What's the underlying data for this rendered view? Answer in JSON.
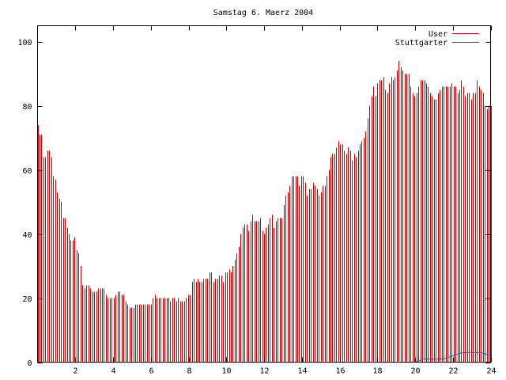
{
  "chart_data": {
    "type": "bar",
    "title": "Samstag 6. Maerz 2004",
    "xlim": [
      0,
      24
    ],
    "ylim": [
      0,
      105
    ],
    "x_ticks": [
      "2",
      "4",
      "6",
      "8",
      "10",
      "12",
      "14",
      "16",
      "18",
      "20",
      "22",
      "24"
    ],
    "y_ticks": [
      "0",
      "20",
      "40",
      "60",
      "80",
      "100"
    ],
    "legend_position": "top-right",
    "grid": false,
    "series": [
      {
        "name": "User",
        "color": "#cc0000",
        "style": "impulses",
        "values": [
          74,
          71,
          71,
          64,
          64,
          66,
          66,
          64,
          58,
          57,
          53,
          51,
          50,
          45,
          45,
          42,
          40,
          38,
          38,
          39,
          35,
          34,
          30,
          24,
          23,
          24,
          24,
          23,
          22,
          22,
          22,
          23,
          23,
          23,
          23,
          21,
          20,
          20,
          20,
          20,
          21,
          22,
          22,
          21,
          21,
          19,
          18,
          17,
          17,
          17,
          18,
          18,
          18,
          18,
          18,
          18,
          18,
          18,
          18,
          20,
          21,
          20,
          20,
          20,
          20,
          20,
          20,
          20,
          19,
          20,
          20,
          19,
          20,
          19,
          19,
          19,
          20,
          21,
          21,
          25,
          26,
          25,
          26,
          25,
          25,
          26,
          26,
          26,
          28,
          28,
          25,
          26,
          26,
          27,
          27,
          25,
          28,
          28,
          29,
          28,
          30,
          32,
          34,
          36,
          40,
          42,
          43,
          43,
          41,
          44,
          46,
          44,
          44,
          44,
          45,
          41,
          40,
          42,
          43,
          45,
          46,
          42,
          44,
          45,
          45,
          45,
          49,
          52,
          53,
          55,
          58,
          58,
          58,
          58,
          55,
          58,
          58,
          56,
          52,
          54,
          54,
          56,
          55,
          54,
          52,
          53,
          55,
          55,
          58,
          60,
          64,
          65,
          65,
          67,
          69,
          68,
          68,
          66,
          65,
          67,
          66,
          63,
          65,
          64,
          66,
          68,
          69,
          70,
          72,
          76,
          80,
          83,
          86,
          83,
          87,
          88,
          88,
          89,
          85,
          84,
          87,
          89,
          88,
          89,
          91,
          94,
          92,
          91,
          90,
          90,
          90,
          86,
          84,
          83,
          84,
          86,
          88,
          88,
          88,
          87,
          86,
          84,
          83,
          82,
          82,
          84,
          85,
          86,
          86,
          86,
          86,
          86,
          87,
          86,
          86,
          84,
          85,
          88,
          86,
          83,
          84,
          84,
          82,
          84,
          84,
          88,
          86,
          85,
          84,
          80,
          79,
          80,
          80
        ]
      },
      {
        "name": "Stuttgarter",
        "color": "#0066bb",
        "style": "line",
        "x": [
          0,
          20.0,
          20.5,
          21.5,
          22.0,
          22.5,
          23.5,
          24
        ],
        "values": [
          0,
          0,
          1,
          1,
          2,
          3,
          3,
          2
        ]
      }
    ]
  }
}
